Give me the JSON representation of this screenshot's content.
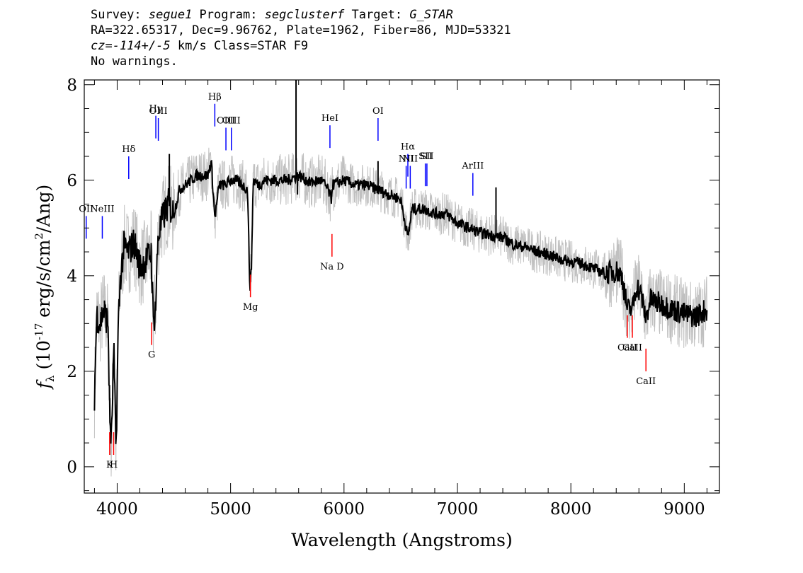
{
  "header": {
    "line1": {
      "p1": "Survey: ",
      "survey": "segue1",
      "p2": " Program: ",
      "program": "segclusterf",
      "p3": " Target: ",
      "target": "G_STAR"
    },
    "line2": "RA=322.65317, Dec=9.96762, Plate=1962, Fiber=86, MJD=53321",
    "line3": {
      "cz": "cz=-114+/-5",
      "rest": " km/s Class=STAR F9"
    },
    "line4": "No warnings."
  },
  "chart_data": {
    "type": "line",
    "xlabel": "Wavelength (Angstroms)",
    "ylabel": "fλ (10⁻¹⁷ erg/s/cm²/Ang)",
    "xlim": [
      3710,
      9310
    ],
    "ylim": [
      -0.55,
      8.1
    ],
    "xticks": [
      4000,
      5000,
      6000,
      7000,
      8000,
      9000
    ],
    "yticks": [
      0,
      2,
      4,
      6,
      8
    ],
    "grid": false,
    "series": [
      {
        "color": "#c0c0c0",
        "role": "flux"
      },
      {
        "color": "#000000",
        "role": "smoothed flux",
        "x": [
          3800,
          3820,
          3850,
          3880,
          3920,
          3935,
          3950,
          3970,
          3990,
          4010,
          4030,
          4060,
          4101,
          4150,
          4200,
          4250,
          4300,
          4320,
          4340,
          4360,
          4400,
          4450,
          4500,
          4550,
          4600,
          4650,
          4700,
          4750,
          4800,
          4830,
          4861,
          4900,
          4950,
          5000,
          5050,
          5100,
          5150,
          5167,
          5172,
          5183,
          5200,
          5250,
          5300,
          5400,
          5500,
          5600,
          5700,
          5800,
          5850,
          5890,
          5896,
          5950,
          6000,
          6100,
          6200,
          6300,
          6400,
          6500,
          6563,
          6600,
          6700,
          6800,
          6900,
          7000,
          7100,
          7200,
          7300,
          7400,
          7500,
          7600,
          7700,
          7800,
          7900,
          8000,
          8100,
          8200,
          8300,
          8400,
          8450,
          8498,
          8542,
          8580,
          8620,
          8662,
          8700,
          8800,
          8900,
          9000,
          9100,
          9200
        ],
        "y": [
          1.5,
          3.2,
          3.0,
          3.3,
          3.0,
          1.0,
          0.5,
          2.5,
          0.3,
          3.0,
          4.0,
          4.6,
          4.5,
          4.7,
          4.2,
          4.3,
          4.5,
          3.0,
          3.4,
          4.8,
          5.2,
          5.5,
          5.3,
          5.8,
          5.9,
          6.0,
          6.1,
          6.1,
          6.1,
          6.4,
          5.2,
          5.9,
          5.9,
          6.0,
          6.0,
          5.9,
          5.8,
          4.0,
          3.8,
          4.1,
          6.0,
          5.9,
          6.0,
          6.0,
          6.0,
          6.1,
          5.95,
          6.0,
          5.85,
          5.6,
          5.9,
          5.95,
          6.0,
          5.9,
          5.9,
          5.8,
          5.7,
          5.6,
          4.8,
          5.4,
          5.4,
          5.3,
          5.3,
          5.1,
          5.0,
          4.9,
          4.85,
          4.8,
          4.65,
          4.6,
          4.5,
          4.45,
          4.35,
          4.3,
          4.25,
          4.15,
          4.05,
          4.1,
          4.0,
          3.3,
          3.3,
          3.8,
          3.6,
          3.1,
          3.5,
          3.4,
          3.3,
          3.2,
          3.15,
          3.3
        ]
      }
    ],
    "spikes": [
      {
        "x": 5577,
        "y": 8.1
      },
      {
        "x": 5590,
        "y": 5.7
      },
      {
        "x": 6300,
        "y": 6.4
      },
      {
        "x": 7340,
        "y": 5.85
      },
      {
        "x": 4460,
        "y": 6.55
      }
    ],
    "emission_lines": [
      {
        "label": "OII",
        "x": 3727,
        "y": 5.25
      },
      {
        "label": "NeIII",
        "x": 3869,
        "y": 5.25
      },
      {
        "label": "Hδ",
        "x": 4102,
        "y": 6.5
      },
      {
        "label": "Hγ",
        "x": 4341,
        "y": 7.35
      },
      {
        "label": "OIII",
        "x": 4363,
        "y": 7.3
      },
      {
        "label": "Hβ",
        "x": 4861,
        "y": 7.6
      },
      {
        "label": "OIII",
        "x": 4959,
        "y": 7.1
      },
      {
        "label": "OIII",
        "x": 5007,
        "y": 7.1
      },
      {
        "label": "HeI",
        "x": 5876,
        "y": 7.15
      },
      {
        "label": "OI",
        "x": 6300,
        "y": 7.3
      },
      {
        "label": "NII",
        "x": 6548,
        "y": 6.3
      },
      {
        "label": "Hα",
        "x": 6563,
        "y": 6.55
      },
      {
        "label": "NII",
        "x": 6584,
        "y": 6.3
      },
      {
        "label": "SII",
        "x": 6717,
        "y": 6.35
      },
      {
        "label": "SII",
        "x": 6731,
        "y": 6.35
      },
      {
        "label": "ArIII",
        "x": 7136,
        "y": 6.15
      }
    ],
    "absorption_lines": [
      {
        "label": "K",
        "x": 3934,
        "y": 0.25
      },
      {
        "label": "H",
        "x": 3969,
        "y": 0.25
      },
      {
        "label": "G",
        "x": 4304,
        "y": 2.55
      },
      {
        "label": "Mg",
        "x": 5175,
        "y": 3.55
      },
      {
        "label": "Na D",
        "x": 5894,
        "y": 4.4
      },
      {
        "label": "CaII",
        "x": 8498,
        "y": 2.7
      },
      {
        "label": "CaII",
        "x": 8542,
        "y": 2.7
      },
      {
        "label": "CaII",
        "x": 8662,
        "y": 2.0
      }
    ],
    "colors": {
      "emission": "#0000ff",
      "absorption": "#ff0000",
      "flux": "#c0c0c0",
      "smooth": "#000000"
    }
  }
}
